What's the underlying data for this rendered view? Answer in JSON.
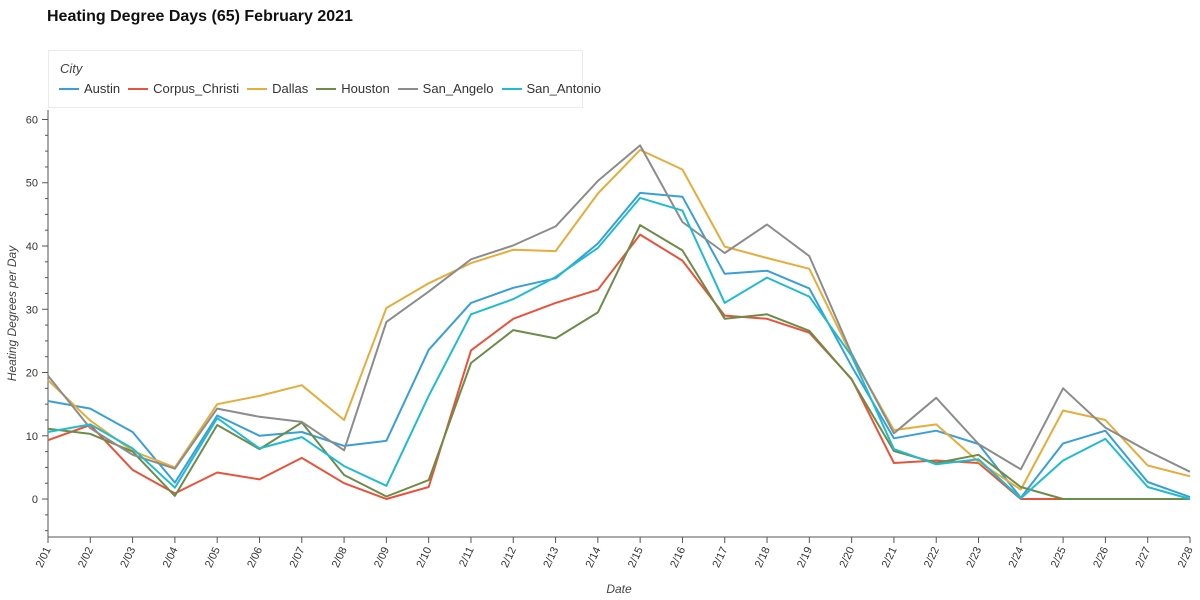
{
  "chart_data": {
    "type": "line",
    "title": "Heating Degree Days (65) February 2021",
    "xlabel": "Date",
    "ylabel": "Heating Degrees per Day",
    "ylim": [
      -6,
      61.5
    ],
    "yticks": [
      0,
      10,
      20,
      30,
      40,
      50,
      60
    ],
    "grid": false,
    "legend_title": "City",
    "legend_position": "top-left",
    "categories": [
      "2/01",
      "2/02",
      "2/03",
      "2/04",
      "2/05",
      "2/06",
      "2/07",
      "2/08",
      "2/09",
      "2/10",
      "2/11",
      "2/12",
      "2/13",
      "2/14",
      "2/15",
      "2/16",
      "2/17",
      "2/18",
      "2/19",
      "2/20",
      "2/21",
      "2/22",
      "2/23",
      "2/24",
      "2/25",
      "2/26",
      "2/27",
      "2/28"
    ],
    "series": [
      {
        "name": "Austin",
        "color": "#3a9fd8",
        "values": [
          15.5,
          14.3,
          10.6,
          2.6,
          13.2,
          10.0,
          10.6,
          8.4,
          9.2,
          23.6,
          31.0,
          33.4,
          34.9,
          40.4,
          48.4,
          47.8,
          35.6,
          36.1,
          33.3,
          21.0,
          9.6,
          10.8,
          8.7,
          0.2,
          8.8,
          10.8,
          2.7,
          0.3
        ]
      },
      {
        "name": "Corpus_Christi",
        "color": "#e8533a",
        "values": [
          9.3,
          11.7,
          4.6,
          0.9,
          4.2,
          3.1,
          6.5,
          2.5,
          0.0,
          1.9,
          23.5,
          28.5,
          31.0,
          33.1,
          41.8,
          37.7,
          29.0,
          28.5,
          26.3,
          19.0,
          5.7,
          6.1,
          5.7,
          0.0,
          0.0,
          0.0,
          0.0,
          0.0
        ]
      },
      {
        "name": "Dallas",
        "color": "#e6ac3c",
        "values": [
          18.8,
          12.4,
          7.6,
          5.0,
          15.0,
          16.3,
          18.0,
          12.5,
          30.2,
          34.1,
          37.3,
          39.4,
          39.2,
          48.3,
          55.2,
          52.1,
          39.9,
          38.1,
          36.4,
          22.7,
          10.9,
          11.8,
          5.9,
          1.5,
          14.0,
          12.5,
          5.3,
          3.6
        ]
      },
      {
        "name": "Houston",
        "color": "#6e8c49",
        "values": [
          11.1,
          10.3,
          7.5,
          0.5,
          11.7,
          7.9,
          12.1,
          3.8,
          0.4,
          3.0,
          21.5,
          26.7,
          25.4,
          29.5,
          43.3,
          39.3,
          28.5,
          29.2,
          26.6,
          18.9,
          7.6,
          5.7,
          7.0,
          1.9,
          0.0,
          0.0,
          0.0,
          0.0
        ]
      },
      {
        "name": "San_Angelo",
        "color": "#8c8c8c",
        "values": [
          19.5,
          11.2,
          7.0,
          4.8,
          14.3,
          13.0,
          12.2,
          7.7,
          28.0,
          32.8,
          37.9,
          40.1,
          43.1,
          50.3,
          55.9,
          43.8,
          38.9,
          43.4,
          38.4,
          23.0,
          10.4,
          16.0,
          8.7,
          4.7,
          17.5,
          11.3,
          7.6,
          4.3
        ]
      },
      {
        "name": "San_Antonio",
        "color": "#1fbcd1",
        "values": [
          10.6,
          11.8,
          8.0,
          1.8,
          12.8,
          8.0,
          9.8,
          5.2,
          2.1,
          16.3,
          29.2,
          31.6,
          35.1,
          39.7,
          47.6,
          45.6,
          31.0,
          35.0,
          32.0,
          22.6,
          7.9,
          5.5,
          6.3,
          0.1,
          6.1,
          9.5,
          1.9,
          0.0
        ]
      }
    ]
  }
}
